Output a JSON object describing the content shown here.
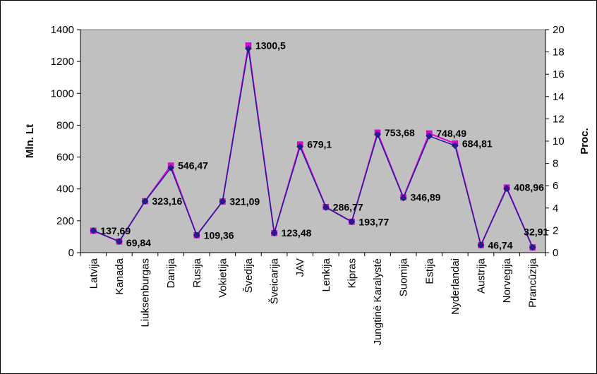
{
  "chart_data": {
    "type": "line",
    "categories": [
      "Latvija",
      "Kanada",
      "Liuksenburgas",
      "Danija",
      "Rusija",
      "Vokietija",
      "Švedija",
      "Šveicarija",
      "JAV",
      "Lenkija",
      "Kipras",
      "Jungtinė Karalystė",
      "Suomija",
      "Estija",
      "Nyderlandai",
      "Austrija",
      "Norvegija",
      "Prancūzija"
    ],
    "series": [
      {
        "values": [
          137.69,
          69.84,
          323.16,
          546.47,
          109.36,
          321.09,
          1300.5,
          123.48,
          679.1,
          286.77,
          193.77,
          753.68,
          346.89,
          748.49,
          684.81,
          46.74,
          408.96,
          32.91
        ],
        "value_labels": [
          "137,69",
          "69,84",
          "323,16",
          "546,47",
          "109,36",
          "321,09",
          "1300,5",
          "123,48",
          "679,1",
          "286,77",
          "193,77",
          "753,68",
          "346,89",
          "748,49",
          "684,81",
          "46,74",
          "408,96",
          "32,91"
        ],
        "color": "#e600e6",
        "marker": "square",
        "axis": "left"
      },
      {
        "values": [
          1.97,
          1.0,
          4.6,
          7.6,
          1.56,
          4.6,
          18.3,
          1.76,
          9.5,
          4.05,
          2.77,
          10.6,
          4.9,
          10.45,
          9.6,
          0.67,
          5.75,
          0.47
        ],
        "color": "#1f1f8f",
        "marker": "diamond",
        "axis": "right"
      }
    ],
    "ylabel": "Mln. Lt",
    "ylabel_right": "Proc.",
    "ylim": [
      0,
      1400
    ],
    "ylim_right": [
      0,
      20
    ],
    "y_ticks": [
      "0",
      "200",
      "400",
      "600",
      "800",
      "1000",
      "1200",
      "1400"
    ],
    "y_ticks_right": [
      "0",
      "2",
      "4",
      "6",
      "8",
      "10",
      "12",
      "14",
      "16",
      "18",
      "20"
    ],
    "plot_background": "#c0c0c0",
    "grid": false,
    "legend": "none"
  }
}
